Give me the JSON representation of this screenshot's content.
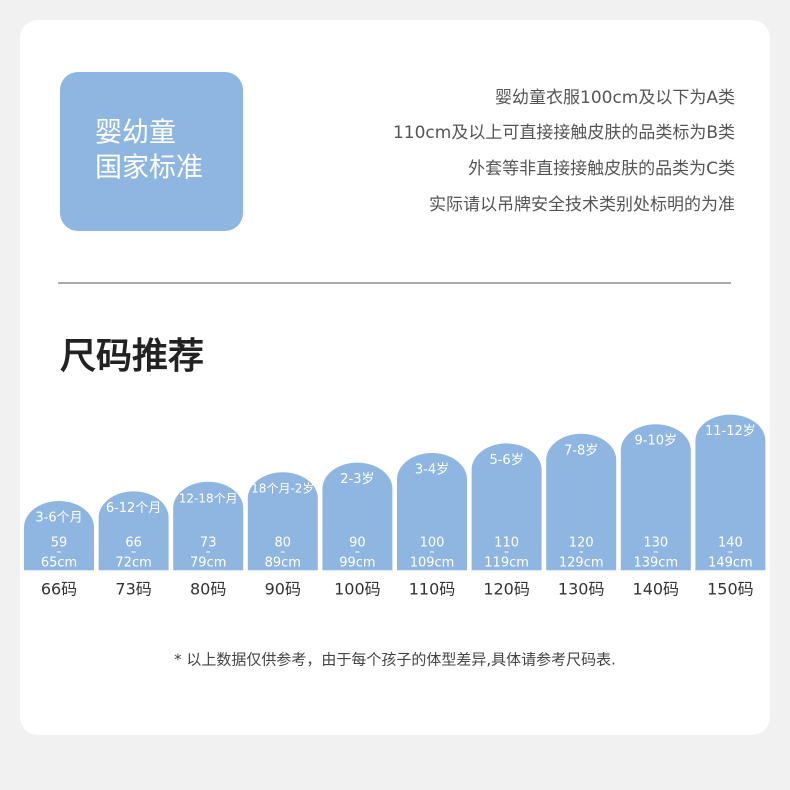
{
  "badge": {
    "lines": [
      "婴幼童",
      "国家标准"
    ]
  },
  "notes": [
    "婴幼童衣服100cm及以下为A类",
    "110cm及以上可直接接触皮肤的品类标为B类",
    "外套等非直接接触皮肤的品类为C类",
    "实际请以吊牌安全技术类别处标明的为准"
  ],
  "section_title": "尺码推荐",
  "sizes": [
    {
      "age": "3-6个月",
      "height_low": "59",
      "height_high": "65cm",
      "size": "66码"
    },
    {
      "age": "6-12个月",
      "height_low": "66",
      "height_high": "72cm",
      "size": "73码"
    },
    {
      "age": "12-18个月",
      "height_low": "73",
      "height_high": "79cm",
      "size": "80码"
    },
    {
      "age": "18个月-2岁",
      "height_low": "80",
      "height_high": "89cm",
      "size": "90码"
    },
    {
      "age": "2-3岁",
      "height_low": "90",
      "height_high": "99cm",
      "size": "100码"
    },
    {
      "age": "3-4岁",
      "height_low": "100",
      "height_high": "109cm",
      "size": "110码"
    },
    {
      "age": "5-6岁",
      "height_low": "110",
      "height_high": "119cm",
      "size": "120码"
    },
    {
      "age": "7-8岁",
      "height_low": "120",
      "height_high": "129cm",
      "size": "130码"
    },
    {
      "age": "9-10岁",
      "height_low": "130",
      "height_high": "139cm",
      "size": "140码"
    },
    {
      "age": "11-12岁",
      "height_low": "140",
      "height_high": "149cm",
      "size": "150码"
    }
  ],
  "footnote": "* 以上数据仅供参考，由于每个孩子的体型差异,具体请参考尺码表."
}
